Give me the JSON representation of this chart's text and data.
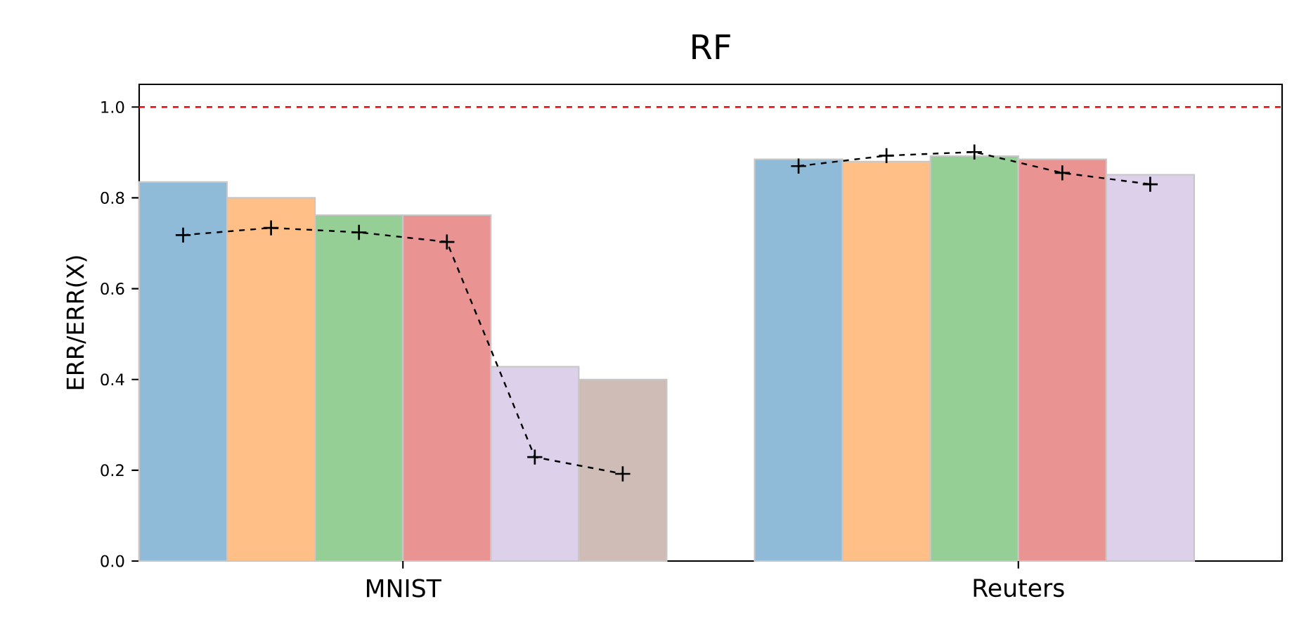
{
  "chart_data": {
    "type": "bar",
    "title": "RF",
    "ylabel": "ERR/ERR(X)",
    "categories": [
      null,
      null,
      null,
      null,
      null,
      null,
      null,
      null,
      null,
      null,
      null,
      null,
      null
    ],
    "series": [
      {
        "colors": [
          "#8fbbd9",
          "#ffbf86",
          "#95cf95",
          "#e99393",
          "#dcd0ea",
          "#cfbcb6",
          null,
          "#8fbbd9",
          "#ffbf86",
          "#95cf95",
          "#e99393",
          "#dcd0ea",
          null
        ],
        "values": [
          0.835,
          0.8,
          0.762,
          0.762,
          0.428,
          0.4,
          null,
          0.885,
          0.88,
          0.892,
          0.885,
          0.851,
          null
        ]
      },
      {
        "type": "line",
        "color": "#000000",
        "marker": "cross",
        "line_style": "dashed",
        "values": [
          0.718,
          0.734,
          0.724,
          0.703,
          0.229,
          0.192,
          null,
          null,
          null,
          null,
          null,
          null,
          null
        ]
      },
      {
        "type": "line",
        "color": "#000000",
        "marker": "cross",
        "line_style": "dashed",
        "values": [
          null,
          null,
          null,
          null,
          null,
          null,
          null,
          0.87,
          0.893,
          0.901,
          0.855,
          0.83,
          null
        ]
      }
    ],
    "annotations": [
      "MNIST",
      "Reuters"
    ],
    "ylim": [
      0,
      1.05
    ],
    "yticks": [
      {
        "value": 0,
        "label": "0.0"
      },
      {
        "value": 0.2,
        "label": "0.2"
      },
      {
        "value": 0.4,
        "label": "0.4"
      },
      {
        "value": 0.6,
        "label": "0.6"
      },
      {
        "value": 0.8,
        "label": "0.8"
      },
      {
        "value": 1.0,
        "label": "1.0"
      }
    ],
    "ref_lines": [
      {
        "axis": "y",
        "value": 1.0,
        "color": "#ff0000",
        "line_style": "dashed"
      }
    ]
  }
}
